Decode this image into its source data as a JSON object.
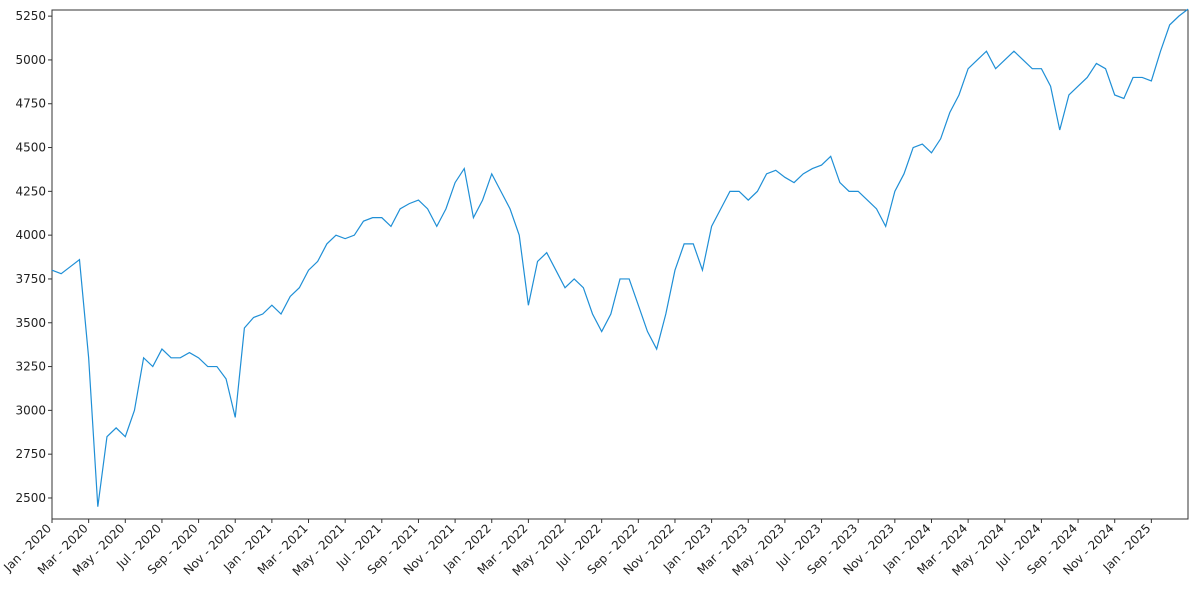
{
  "chart_data": {
    "type": "line",
    "categories": [
      "Jan - 2020",
      null,
      null,
      null,
      "Mar - 2020",
      null,
      null,
      null,
      "May - 2020",
      null,
      null,
      null,
      "Jul - 2020",
      null,
      null,
      null,
      "Sep - 2020",
      null,
      null,
      null,
      "Nov - 2020",
      null,
      null,
      null,
      "Jan - 2021",
      null,
      null,
      null,
      "Mar - 2021",
      null,
      null,
      null,
      "May - 2021",
      null,
      null,
      null,
      "Jul - 2021",
      null,
      null,
      null,
      "Sep - 2021",
      null,
      null,
      null,
      "Nov - 2021",
      null,
      null,
      null,
      "Jan - 2022",
      null,
      null,
      null,
      "Mar - 2022",
      null,
      null,
      null,
      "May - 2022",
      null,
      null,
      null,
      "Jul - 2022",
      null,
      null,
      null,
      "Sep - 2022",
      null,
      null,
      null,
      "Nov - 2022",
      null,
      null,
      null,
      "Jan - 2023",
      null,
      null,
      null,
      "Mar - 2023",
      null,
      null,
      null,
      "May - 2023",
      null,
      null,
      null,
      "Jul - 2023",
      null,
      null,
      null,
      "Sep - 2023",
      null,
      null,
      null,
      "Nov - 2023",
      null,
      null,
      null,
      "Jan - 2024",
      null,
      null,
      null,
      "Mar - 2024",
      null,
      null,
      null,
      "May - 2024",
      null,
      null,
      null,
      "Jul - 2024",
      null,
      null,
      null,
      "Sep - 2024",
      null,
      null,
      null,
      "Nov - 2024",
      null,
      null,
      null,
      "Jan - 2025",
      null,
      null,
      null,
      null
    ],
    "values": [
      3800,
      3780,
      3820,
      3860,
      3300,
      2450,
      2850,
      2900,
      2850,
      3000,
      3300,
      3250,
      3350,
      3300,
      3300,
      3330,
      3300,
      3250,
      3250,
      3180,
      2960,
      3470,
      3530,
      3550,
      3600,
      3550,
      3650,
      3700,
      3800,
      3850,
      3950,
      4000,
      3980,
      4000,
      4080,
      4100,
      4100,
      4050,
      4150,
      4180,
      4200,
      4150,
      4050,
      4150,
      4300,
      4380,
      4100,
      4200,
      4350,
      4250,
      4150,
      4000,
      3600,
      3850,
      3900,
      3800,
      3700,
      3750,
      3700,
      3550,
      3450,
      3550,
      3750,
      3750,
      3600,
      3450,
      3350,
      3550,
      3800,
      3950,
      3950,
      3800,
      4050,
      4150,
      4250,
      4250,
      4200,
      4250,
      4350,
      4370,
      4330,
      4300,
      4350,
      4380,
      4400,
      4450,
      4300,
      4250,
      4250,
      4200,
      4150,
      4050,
      4250,
      4350,
      4500,
      4520,
      4470,
      4550,
      4700,
      4800,
      4950,
      5000,
      5050,
      4950,
      5000,
      5050,
      5000,
      4950,
      4950,
      4850,
      4600,
      4800,
      4850,
      4900,
      4980,
      4950,
      4800,
      4780,
      4900,
      4900,
      4880,
      5050,
      5200,
      5250,
      5290
    ],
    "color": "#1f8fd6",
    "ylim": [
      2380,
      5285
    ],
    "yticks": [
      2500,
      2750,
      3000,
      3250,
      3500,
      3750,
      4000,
      4250,
      4500,
      4750,
      5000,
      5250
    ]
  }
}
